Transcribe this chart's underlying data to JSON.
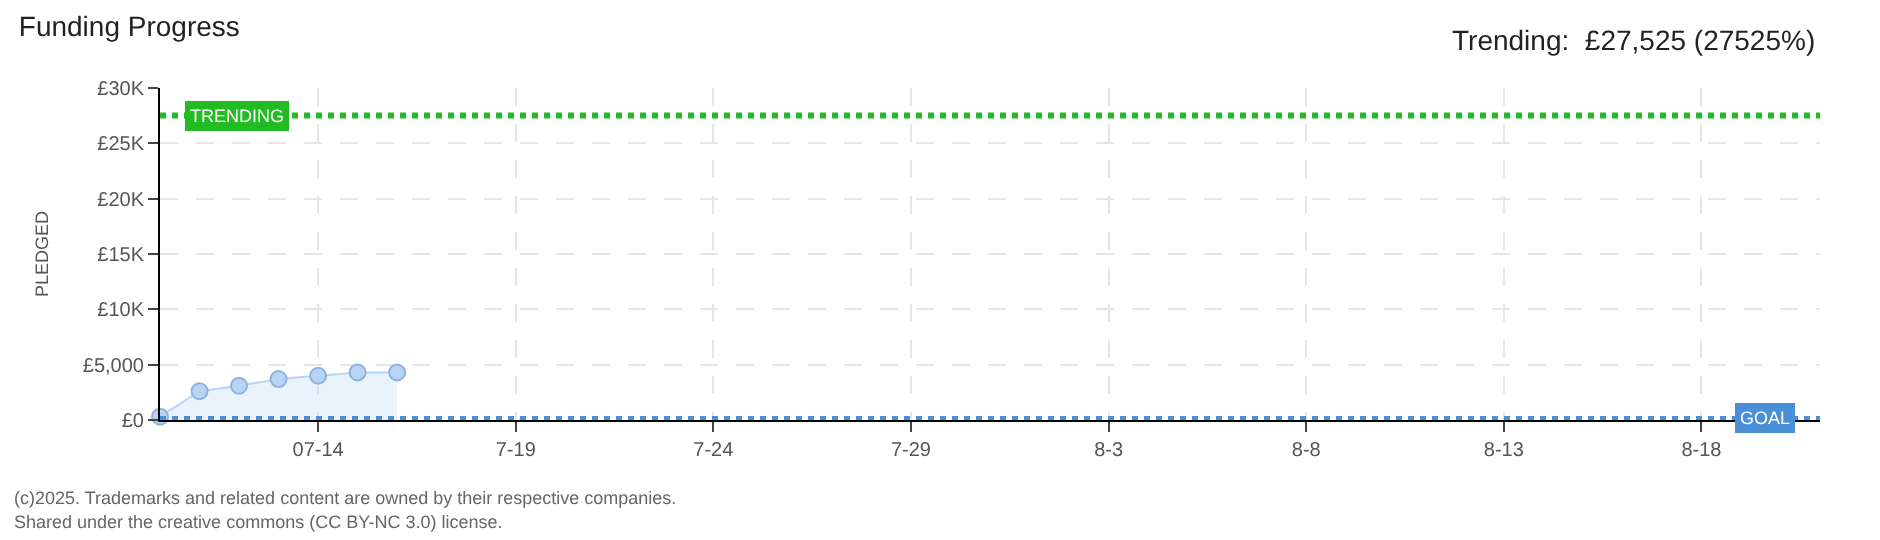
{
  "chart_data": {
    "type": "area",
    "title": "Funding Progress",
    "ylabel": "PLEDGED",
    "annotations": [
      "Trending:  £27,525 (27525%)",
      "(c)2025. Trademarks and related content are owned by their respective companies.",
      "Shared under the creative commons (CC BY-NC 3.0) license."
    ],
    "x": [
      "2025-07-10",
      "2025-07-11",
      "2025-07-12",
      "2025-07-13",
      "2025-07-14",
      "2025-07-15",
      "2025-07-16"
    ],
    "series": [
      {
        "color": "#b8d4f5",
        "values": [
          300,
          2600,
          3100,
          3700,
          4000,
          4300,
          4300
        ]
      }
    ],
    "marker": "circle",
    "grid": true,
    "xlim": [
      "2025-07-10",
      "2025-08-21"
    ],
    "xticks": [
      {
        "value": "2025-07-14",
        "label": "07-14"
      },
      {
        "value": "2025-07-19",
        "label": "7-19"
      },
      {
        "value": "2025-07-24",
        "label": "7-24"
      },
      {
        "value": "2025-07-29",
        "label": "7-29"
      },
      {
        "value": "2025-08-03",
        "label": "8-3"
      },
      {
        "value": "2025-08-08",
        "label": "8-8"
      },
      {
        "value": "2025-08-13",
        "label": "8-13"
      },
      {
        "value": "2025-08-18",
        "label": "8-18"
      }
    ],
    "ylim": [
      0,
      30000
    ],
    "yticks": [
      {
        "value": 0,
        "label": "£0"
      },
      {
        "value": 5000,
        "label": "£5,000"
      },
      {
        "value": 10000,
        "label": "£10K"
      },
      {
        "value": 15000,
        "label": "£15K"
      },
      {
        "value": 20000,
        "label": "£20K"
      },
      {
        "value": 25000,
        "label": "£25K"
      },
      {
        "value": 30000,
        "label": "£30K"
      }
    ],
    "ref_lines": [
      {
        "axis": "y",
        "value": 27525,
        "label": "TRENDING",
        "color": "#22bb22",
        "line_style": "dotted"
      },
      {
        "axis": "y",
        "value": 100,
        "label": "GOAL",
        "color": "#4a90d9",
        "line_style": "dotted"
      }
    ]
  }
}
